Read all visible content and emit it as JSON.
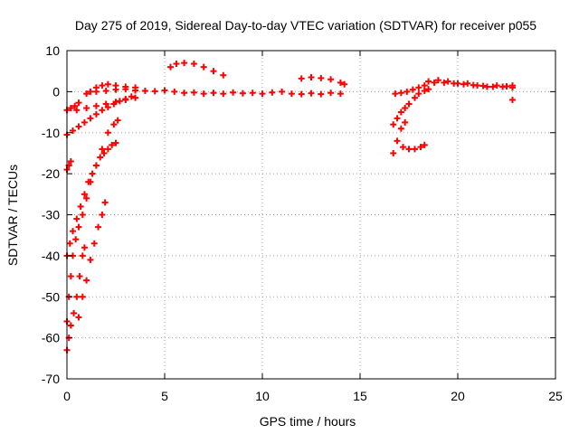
{
  "chart_data": {
    "type": "scatter",
    "title": "Day 275 of 2019, Sidereal Day-to-day VTEC variation (SDTVAR) for receiver p055",
    "xlabel": "GPS time / hours",
    "ylabel": "SDTVAR / TECUs",
    "xlim": [
      0,
      25
    ],
    "ylim": [
      -70,
      10
    ],
    "xticks": [
      0,
      5,
      10,
      15,
      20,
      25
    ],
    "yticks": [
      -70,
      -60,
      -50,
      -40,
      -30,
      -20,
      -10,
      0,
      10
    ],
    "grid": true,
    "marker": "plus",
    "color": "#ff0000",
    "series": [
      {
        "values": [
          [
            0.0,
            -63
          ],
          [
            0.1,
            -60
          ],
          [
            0.2,
            -57
          ],
          [
            0.35,
            -54
          ],
          [
            0.5,
            -50
          ],
          [
            0.65,
            -45
          ],
          [
            0.8,
            -40
          ],
          [
            0.9,
            -38
          ],
          [
            0.0,
            -56
          ],
          [
            0.1,
            -50
          ],
          [
            0.2,
            -45
          ],
          [
            0.3,
            -40
          ],
          [
            0.45,
            -36
          ],
          [
            0.6,
            -33
          ],
          [
            0.8,
            -30
          ],
          [
            1.0,
            -26
          ],
          [
            1.2,
            -22
          ],
          [
            1.5,
            -18
          ],
          [
            1.8,
            -14
          ],
          [
            2.1,
            -10
          ],
          [
            2.4,
            -8
          ],
          [
            2.6,
            -7
          ],
          [
            0.0,
            -40
          ],
          [
            0.15,
            -37
          ],
          [
            0.3,
            -34
          ],
          [
            0.5,
            -31
          ],
          [
            0.7,
            -28
          ],
          [
            0.9,
            -25
          ],
          [
            1.1,
            -22
          ],
          [
            1.3,
            -20
          ],
          [
            1.5,
            -18
          ],
          [
            1.7,
            -16
          ],
          [
            1.9,
            -15
          ],
          [
            2.1,
            -14
          ],
          [
            2.3,
            -13
          ],
          [
            2.5,
            -12.5
          ],
          [
            0.6,
            -55
          ],
          [
            0.8,
            -50
          ],
          [
            1.0,
            -46
          ],
          [
            1.2,
            -41
          ],
          [
            1.4,
            -37
          ],
          [
            1.6,
            -33
          ],
          [
            1.8,
            -30
          ],
          [
            1.95,
            -27
          ],
          [
            0.0,
            -19
          ],
          [
            0.1,
            -18
          ],
          [
            0.2,
            -17
          ],
          [
            0.0,
            -10.5
          ],
          [
            0.3,
            -9.5
          ],
          [
            0.6,
            -8.5
          ],
          [
            0.9,
            -7.5
          ],
          [
            1.2,
            -6.5
          ],
          [
            1.5,
            -5.5
          ],
          [
            1.8,
            -4.5
          ],
          [
            2.1,
            -3.8
          ],
          [
            2.4,
            -3
          ],
          [
            2.7,
            -2.3
          ],
          [
            3.0,
            -1.8
          ],
          [
            3.3,
            -1.2
          ],
          [
            0.0,
            -4.5
          ],
          [
            0.2,
            -4
          ],
          [
            0.4,
            -3.5
          ],
          [
            0.6,
            -2.7
          ],
          [
            0.5,
            -4.5
          ],
          [
            1.0,
            -4
          ],
          [
            1.5,
            -3.5
          ],
          [
            2.0,
            -3
          ],
          [
            2.5,
            -2.5
          ],
          [
            3.0,
            -2
          ],
          [
            3.5,
            -1.5
          ],
          [
            1.0,
            -0.5
          ],
          [
            1.2,
            0
          ],
          [
            1.5,
            1
          ],
          [
            1.8,
            1.5
          ],
          [
            2.1,
            1.8
          ],
          [
            2.5,
            1.5
          ],
          [
            3.0,
            1.2
          ],
          [
            3.5,
            1
          ],
          [
            1.5,
            0
          ],
          [
            2.0,
            0.2
          ],
          [
            2.5,
            0.5
          ],
          [
            3.0,
            0.6
          ],
          [
            3.5,
            0.3
          ],
          [
            4.0,
            0.2
          ],
          [
            4.5,
            0.1
          ],
          [
            5.0,
            0.3
          ],
          [
            5.5,
            0
          ],
          [
            6.0,
            -0.3
          ],
          [
            6.5,
            -0.2
          ],
          [
            7.0,
            -0.5
          ],
          [
            7.5,
            -0.3
          ],
          [
            8.0,
            -0.5
          ],
          [
            8.5,
            -0.2
          ],
          [
            9.0,
            -0.4
          ],
          [
            9.5,
            -0.3
          ],
          [
            10.0,
            -0.5
          ],
          [
            10.5,
            -0.2
          ],
          [
            11.0,
            0
          ],
          [
            11.5,
            -0.5
          ],
          [
            12.0,
            -0.6
          ],
          [
            12.5,
            -0.4
          ],
          [
            13.0,
            -0.6
          ],
          [
            13.5,
            -0.3
          ],
          [
            14.0,
            -0.5
          ],
          [
            5.3,
            6
          ],
          [
            5.6,
            6.8
          ],
          [
            6.0,
            7
          ],
          [
            6.5,
            6.8
          ],
          [
            7.0,
            6
          ],
          [
            7.5,
            5
          ],
          [
            8.0,
            4
          ],
          [
            12.0,
            3.2
          ],
          [
            12.5,
            3.5
          ],
          [
            13.0,
            3.3
          ],
          [
            13.5,
            3
          ],
          [
            14.0,
            2.2
          ],
          [
            14.2,
            1.8
          ],
          [
            16.7,
            -15
          ],
          [
            16.9,
            -12
          ],
          [
            17.1,
            -9
          ],
          [
            17.3,
            -7.5
          ],
          [
            16.7,
            -8
          ],
          [
            16.9,
            -6.5
          ],
          [
            17.1,
            -5
          ],
          [
            17.3,
            -4
          ],
          [
            17.5,
            -3
          ],
          [
            17.8,
            -1.5
          ],
          [
            18.0,
            -0.5
          ],
          [
            18.3,
            0.2
          ],
          [
            18.5,
            0.6
          ],
          [
            16.8,
            -0.5
          ],
          [
            17.1,
            -0.3
          ],
          [
            17.4,
            0
          ],
          [
            17.7,
            0.5
          ],
          [
            18.0,
            1
          ],
          [
            18.3,
            1.5
          ],
          [
            17.2,
            -13.5
          ],
          [
            17.5,
            -14
          ],
          [
            17.8,
            -14
          ],
          [
            18.1,
            -13.5
          ],
          [
            18.3,
            -13
          ],
          [
            18.5,
            2.5
          ],
          [
            19.0,
            2.8
          ],
          [
            19.5,
            2.5
          ],
          [
            20.0,
            2
          ],
          [
            20.5,
            2
          ],
          [
            21.0,
            1.5
          ],
          [
            21.5,
            1.2
          ],
          [
            22.0,
            1.5
          ],
          [
            22.5,
            1.3
          ],
          [
            22.8,
            1
          ],
          [
            18.8,
            2.2
          ],
          [
            19.3,
            2.2
          ],
          [
            19.8,
            2
          ],
          [
            20.3,
            1.8
          ],
          [
            20.8,
            1.6
          ],
          [
            21.3,
            1.4
          ],
          [
            21.8,
            1.2
          ],
          [
            22.3,
            1.2
          ],
          [
            22.8,
            1.5
          ],
          [
            22.8,
            -2
          ]
        ]
      }
    ]
  }
}
